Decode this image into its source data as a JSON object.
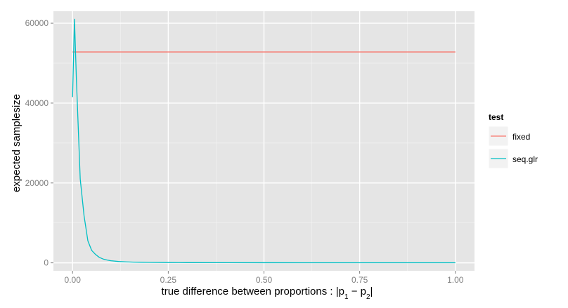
{
  "chart_data": {
    "type": "line",
    "xlabel": "true difference between proportions : |p",
    "xlabel_sub1": "1",
    "xlabel_minus": " − p",
    "xlabel_sub2": "2",
    "xlabel_end": "|",
    "ylabel": "expected samplesize",
    "xlim": [
      -0.05,
      1.05
    ],
    "ylim": [
      -2000,
      63000
    ],
    "x_ticks": [
      0,
      0.25,
      0.5,
      0.75,
      1
    ],
    "x_tick_labels": [
      "0.00",
      "0.25",
      "0.50",
      "0.75",
      "1.00"
    ],
    "y_ticks": [
      0,
      20000,
      40000,
      60000
    ],
    "y_tick_labels": [
      "0",
      "20000",
      "40000",
      "60000"
    ],
    "grid": true,
    "legend": {
      "title": "test",
      "position": "right",
      "entries": [
        {
          "label": "fixed",
          "color": "#F8766D"
        },
        {
          "label": "seq.glr",
          "color": "#00BFC4"
        }
      ]
    },
    "series": [
      {
        "name": "fixed",
        "color": "#F8766D",
        "x": [
          0,
          1
        ],
        "y": [
          52800,
          52800
        ]
      },
      {
        "name": "seq.glr",
        "color": "#00BFC4",
        "x": [
          0,
          0.005,
          0.01,
          0.02,
          0.03,
          0.04,
          0.05,
          0.06,
          0.07,
          0.08,
          0.09,
          0.1,
          0.12,
          0.14,
          0.16,
          0.18,
          0.2,
          0.25,
          0.3,
          0.4,
          0.5,
          0.6,
          0.7,
          0.8,
          0.9,
          1.0
        ],
        "y": [
          41500,
          61000,
          46000,
          21000,
          11800,
          5500,
          3100,
          2100,
          1350,
          950,
          700,
          520,
          340,
          240,
          180,
          140,
          110,
          75,
          55,
          40,
          30,
          25,
          22,
          20,
          18,
          17
        ]
      }
    ]
  },
  "colors": {
    "panel_background": "#E5E5E5",
    "grid_major": "#FFFFFF",
    "grid_minor": "#F2F2F2",
    "tick_text": "#7F7F7F",
    "legend_key_background": "#F2F2F2"
  }
}
